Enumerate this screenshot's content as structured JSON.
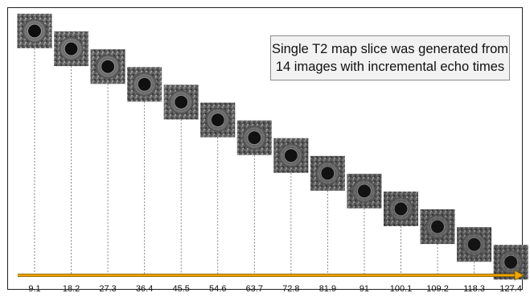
{
  "note": {
    "line1": "Single T2 map slice was generated from",
    "line2": "14 images with incremental echo times"
  },
  "axis": {
    "color": "#f0a500",
    "outline": "#7a5a00",
    "tick_labels": [
      "9.1",
      "18.2",
      "27.3",
      "36.4",
      "45.5",
      "54.6",
      "63.7",
      "72.8",
      "81.9",
      "91",
      "100.1",
      "109.2",
      "118.3",
      "127.4"
    ]
  },
  "images": {
    "count": 14,
    "description_icon": "mri-ring-thumbnail"
  },
  "colors": {
    "border": "#222222",
    "dash": "#666666",
    "note_bg": "#f2f2f2"
  }
}
